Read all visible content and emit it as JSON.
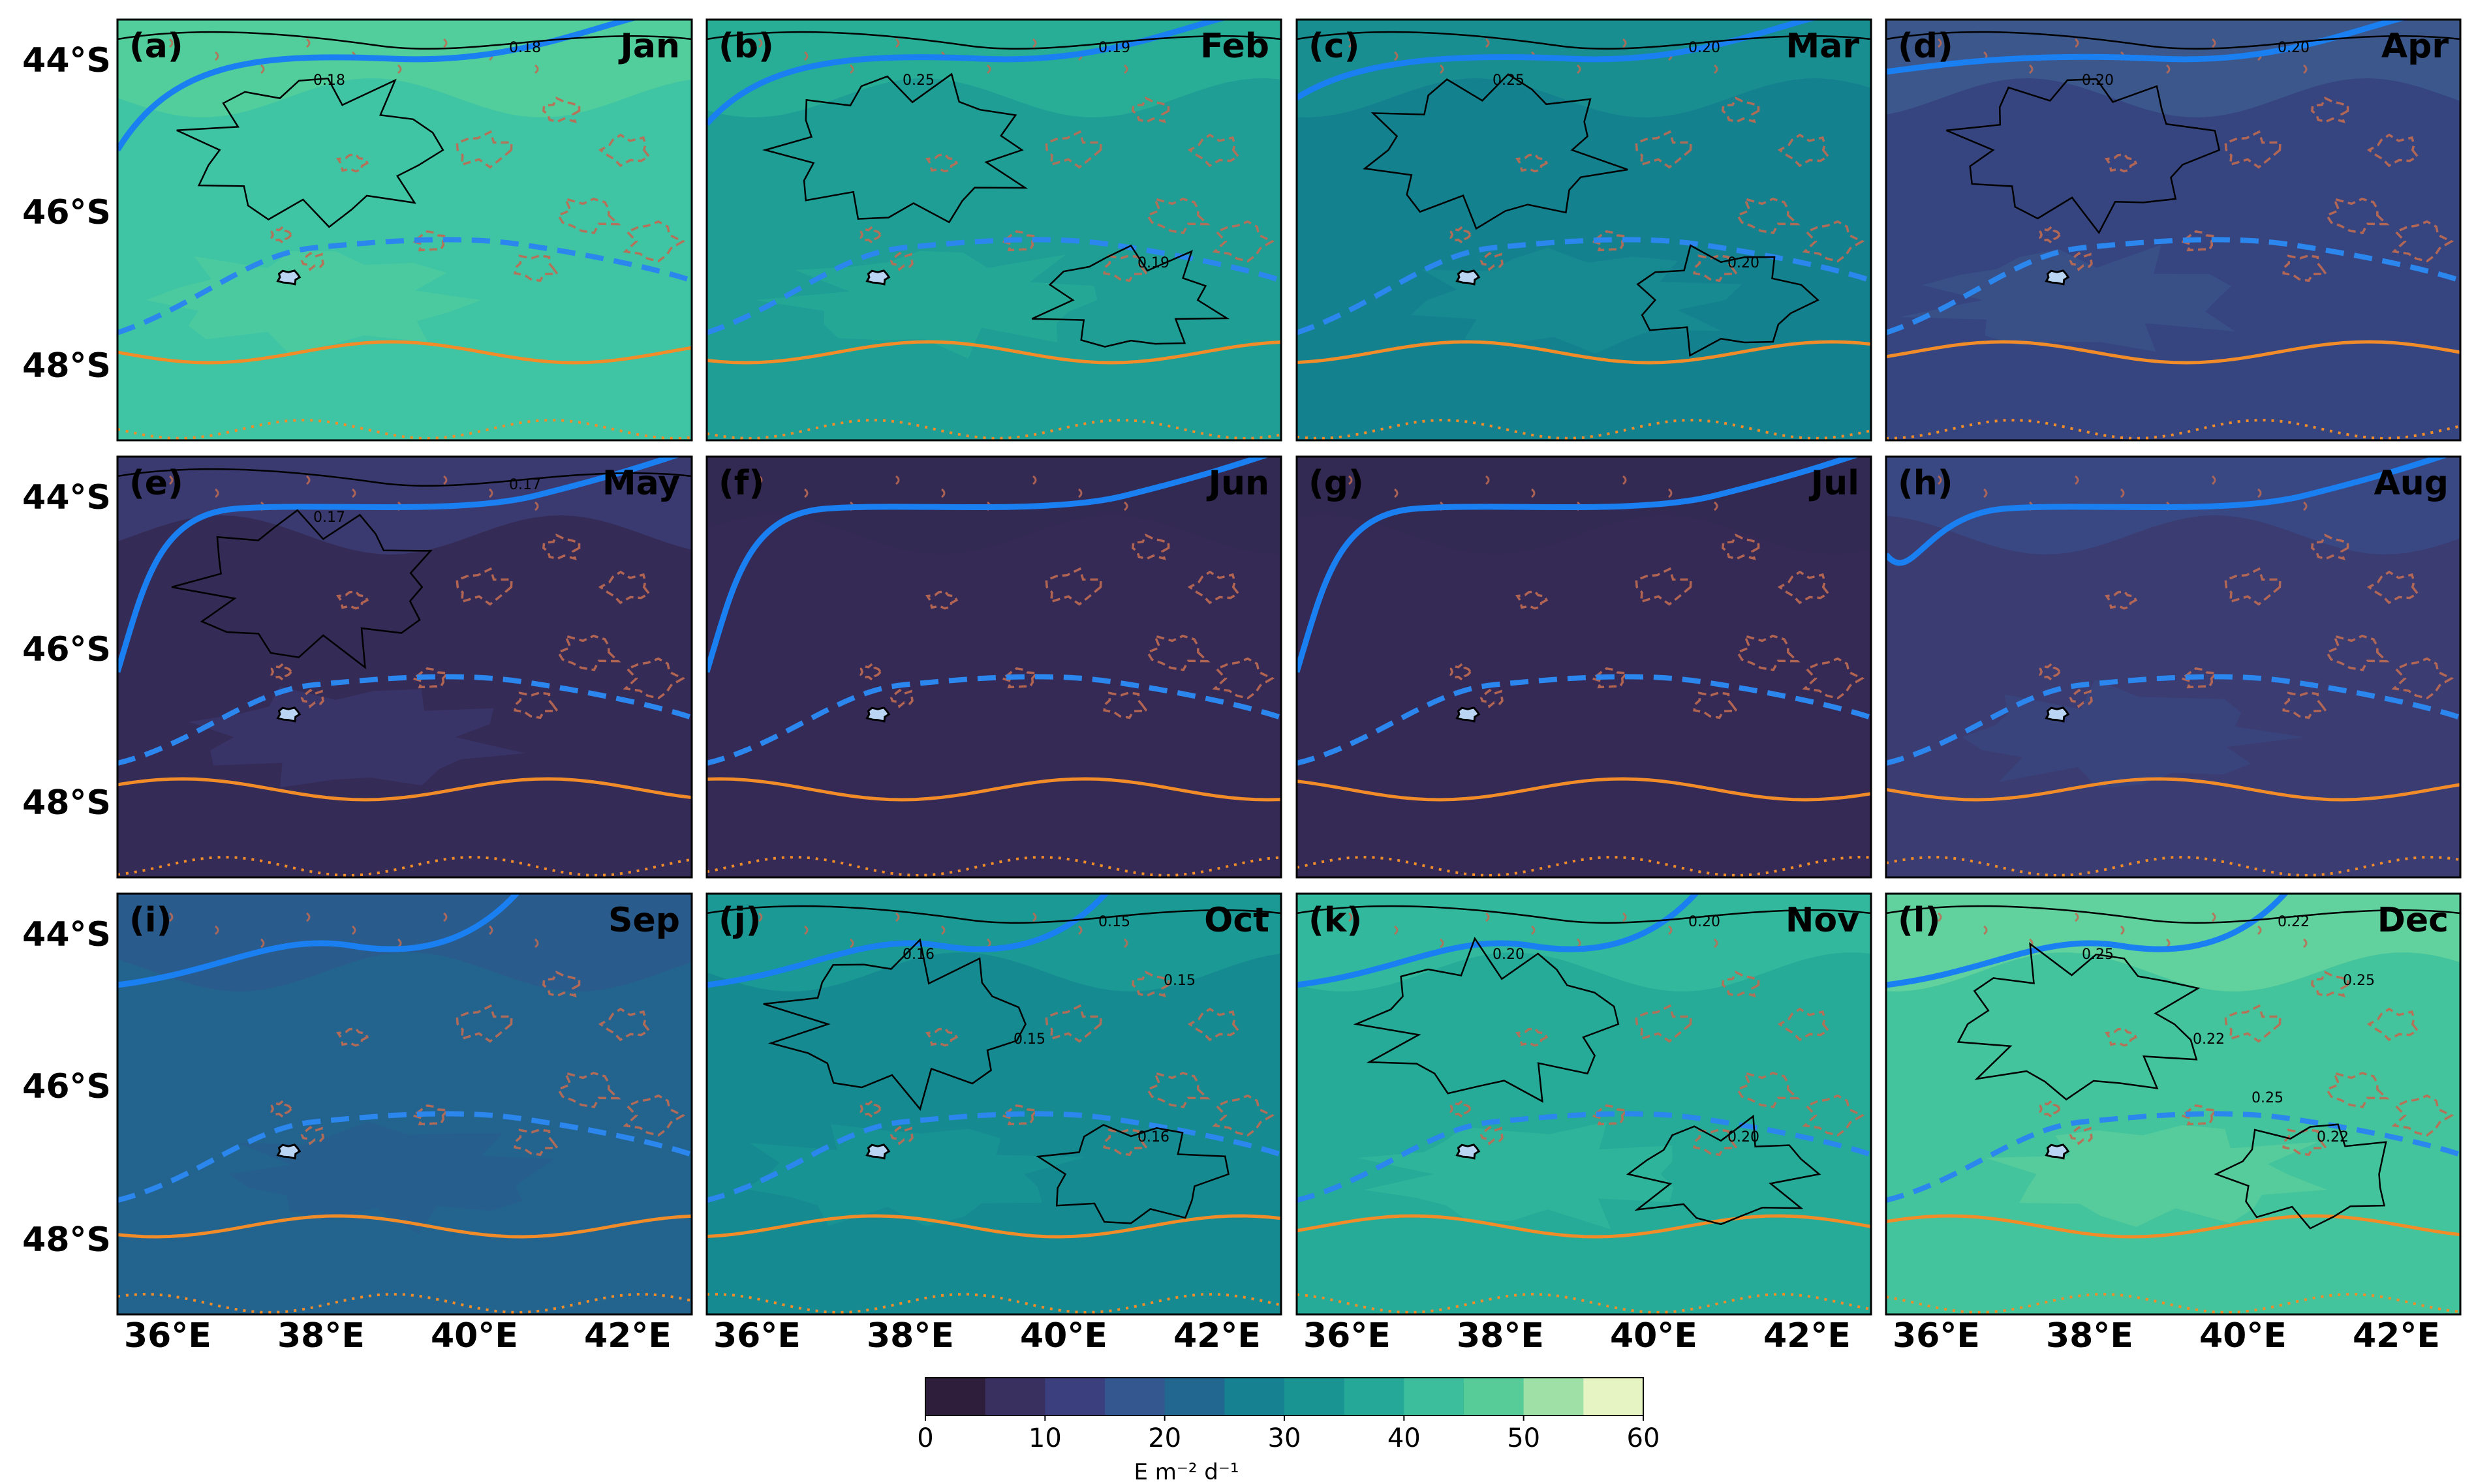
{
  "panels": [
    {
      "label": "(a)",
      "month": "Jan",
      "base": "#3fc4a4",
      "band": "#56cf9b",
      "contours": [
        "0.18",
        "0.18"
      ]
    },
    {
      "label": "(b)",
      "month": "Feb",
      "base": "#1f9e95",
      "band": "#2aaf98",
      "contours": [
        "0.25",
        "0.19",
        "0.19"
      ]
    },
    {
      "label": "(c)",
      "month": "Mar",
      "base": "#14818f",
      "band": "#1a9092",
      "contours": [
        "0.25",
        "0.20",
        "0.20"
      ]
    },
    {
      "label": "(d)",
      "month": "Apr",
      "base": "#36457f",
      "band": "#3c5a8d",
      "contours": [
        "0.20",
        "0.20"
      ]
    },
    {
      "label": "(e)",
      "month": "May",
      "base": "#352b57",
      "band": "#3b3d74",
      "contours": [
        "0.17",
        "0.17"
      ]
    },
    {
      "label": "(f)",
      "month": "Jun",
      "base": "#342a55",
      "band": "#342a55",
      "contours": []
    },
    {
      "label": "(g)",
      "month": "Jul",
      "base": "#342a55",
      "band": "#342a55",
      "contours": []
    },
    {
      "label": "(h)",
      "month": "Aug",
      "base": "#3a3c72",
      "band": "#3a4a85",
      "contours": []
    },
    {
      "label": "(i)",
      "month": "Sep",
      "base": "#23648f",
      "band": "#2a5a8c",
      "contours": []
    },
    {
      "label": "(j)",
      "month": "Oct",
      "base": "#168a91",
      "band": "#1c9b95",
      "contours": [
        "0.16",
        "0.15",
        "0.16",
        "0.15",
        "0.15"
      ]
    },
    {
      "label": "(k)",
      "month": "Nov",
      "base": "#26ab98",
      "band": "#35bb9d",
      "contours": [
        "0.20",
        "0.20",
        "0.20"
      ]
    },
    {
      "label": "(l)",
      "month": "Dec",
      "base": "#44c49c",
      "band": "#66d49d",
      "contours": [
        "0.25",
        "0.22",
        "0.22",
        "0.22",
        "0.25",
        "0.25"
      ]
    }
  ],
  "axes": {
    "lat_ticks": [
      "44°S",
      "46°S",
      "48°S"
    ],
    "lon_ticks": [
      "36°E",
      "38°E",
      "40°E",
      "42°E"
    ]
  },
  "colorbar": {
    "ticks": [
      "0",
      "10",
      "20",
      "30",
      "40",
      "50",
      "60"
    ],
    "unit_label": "E m⁻² d⁻¹",
    "colors": [
      "#2e1e3b",
      "#39305f",
      "#3c3f7e",
      "#35578f",
      "#21678f",
      "#168191",
      "#1a9492",
      "#26a898",
      "#3cbd9c",
      "#58cc98",
      "#9ee0a6",
      "#e6f4c4"
    ]
  },
  "colors": {
    "front_solid": "#1a7ff0",
    "front_dashed": "#2b86ee",
    "orange_front": "#f28c28",
    "orange_dotted": "#f28c28",
    "bathymetry": "#c06a52",
    "island": "#b9d5f3"
  }
}
